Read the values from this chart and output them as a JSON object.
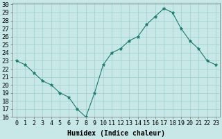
{
  "x": [
    0,
    1,
    2,
    3,
    4,
    5,
    6,
    7,
    8,
    9,
    10,
    11,
    12,
    13,
    14,
    15,
    16,
    17,
    18,
    19,
    20,
    21,
    22,
    23
  ],
  "y": [
    23,
    22.5,
    21.5,
    20.5,
    20,
    19,
    18.5,
    17,
    16,
    19,
    22.5,
    24,
    24.5,
    25.5,
    26,
    27.5,
    28.5,
    29.5,
    29,
    27,
    25.5,
    24.5,
    23,
    22.5
  ],
  "line_color": "#1a7a6e",
  "marker_color": "#1a7a6e",
  "bg_color": "#c8e8e8",
  "grid_color": "#9ecece",
  "xlabel": "Humidex (Indice chaleur)",
  "ylim": [
    16,
    30
  ],
  "xlim": [
    -0.5,
    23.5
  ],
  "yticks": [
    16,
    17,
    18,
    19,
    20,
    21,
    22,
    23,
    24,
    25,
    26,
    27,
    28,
    29,
    30
  ],
  "xtick_labels": [
    "0",
    "1",
    "2",
    "3",
    "4",
    "5",
    "6",
    "7",
    "8",
    "9",
    "10",
    "11",
    "12",
    "13",
    "14",
    "15",
    "16",
    "17",
    "18",
    "19",
    "20",
    "21",
    "22",
    "23"
  ],
  "label_fontsize": 7,
  "tick_fontsize": 6.5
}
